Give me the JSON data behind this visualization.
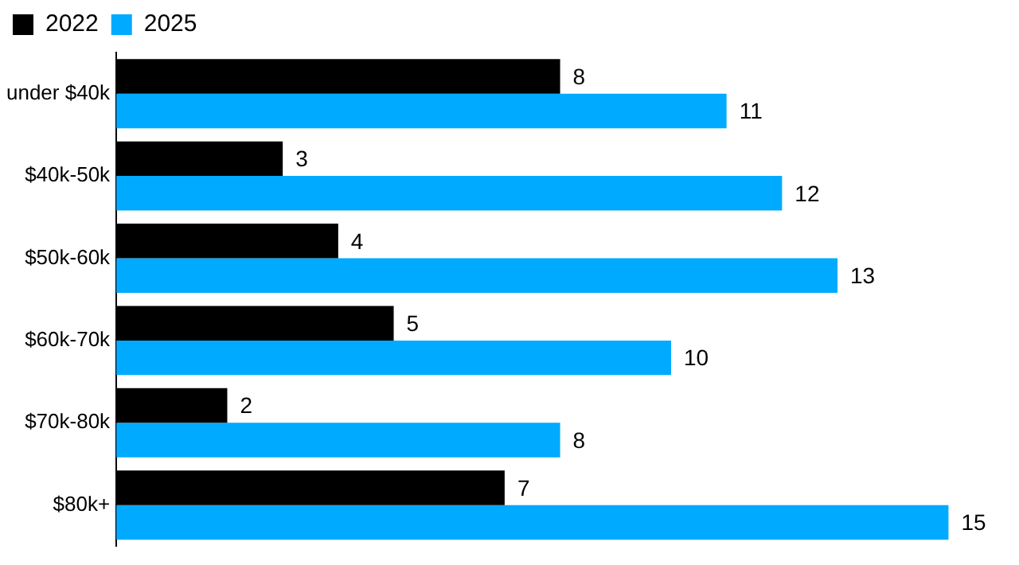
{
  "chart_data": {
    "type": "bar",
    "orientation": "horizontal",
    "categories": [
      "under $40k",
      "$40k-50k",
      "$50k-60k",
      "$60k-70k",
      "$70k-80k",
      "$80k+"
    ],
    "series": [
      {
        "name": "2022",
        "color": "#000000",
        "values": [
          8,
          3,
          4,
          5,
          2,
          7
        ]
      },
      {
        "name": "2025",
        "color": "#00aaff",
        "values": [
          11,
          12,
          13,
          10,
          8,
          15
        ]
      }
    ],
    "data_labels": true,
    "legend": "top left",
    "tick_labels": "y"
  }
}
